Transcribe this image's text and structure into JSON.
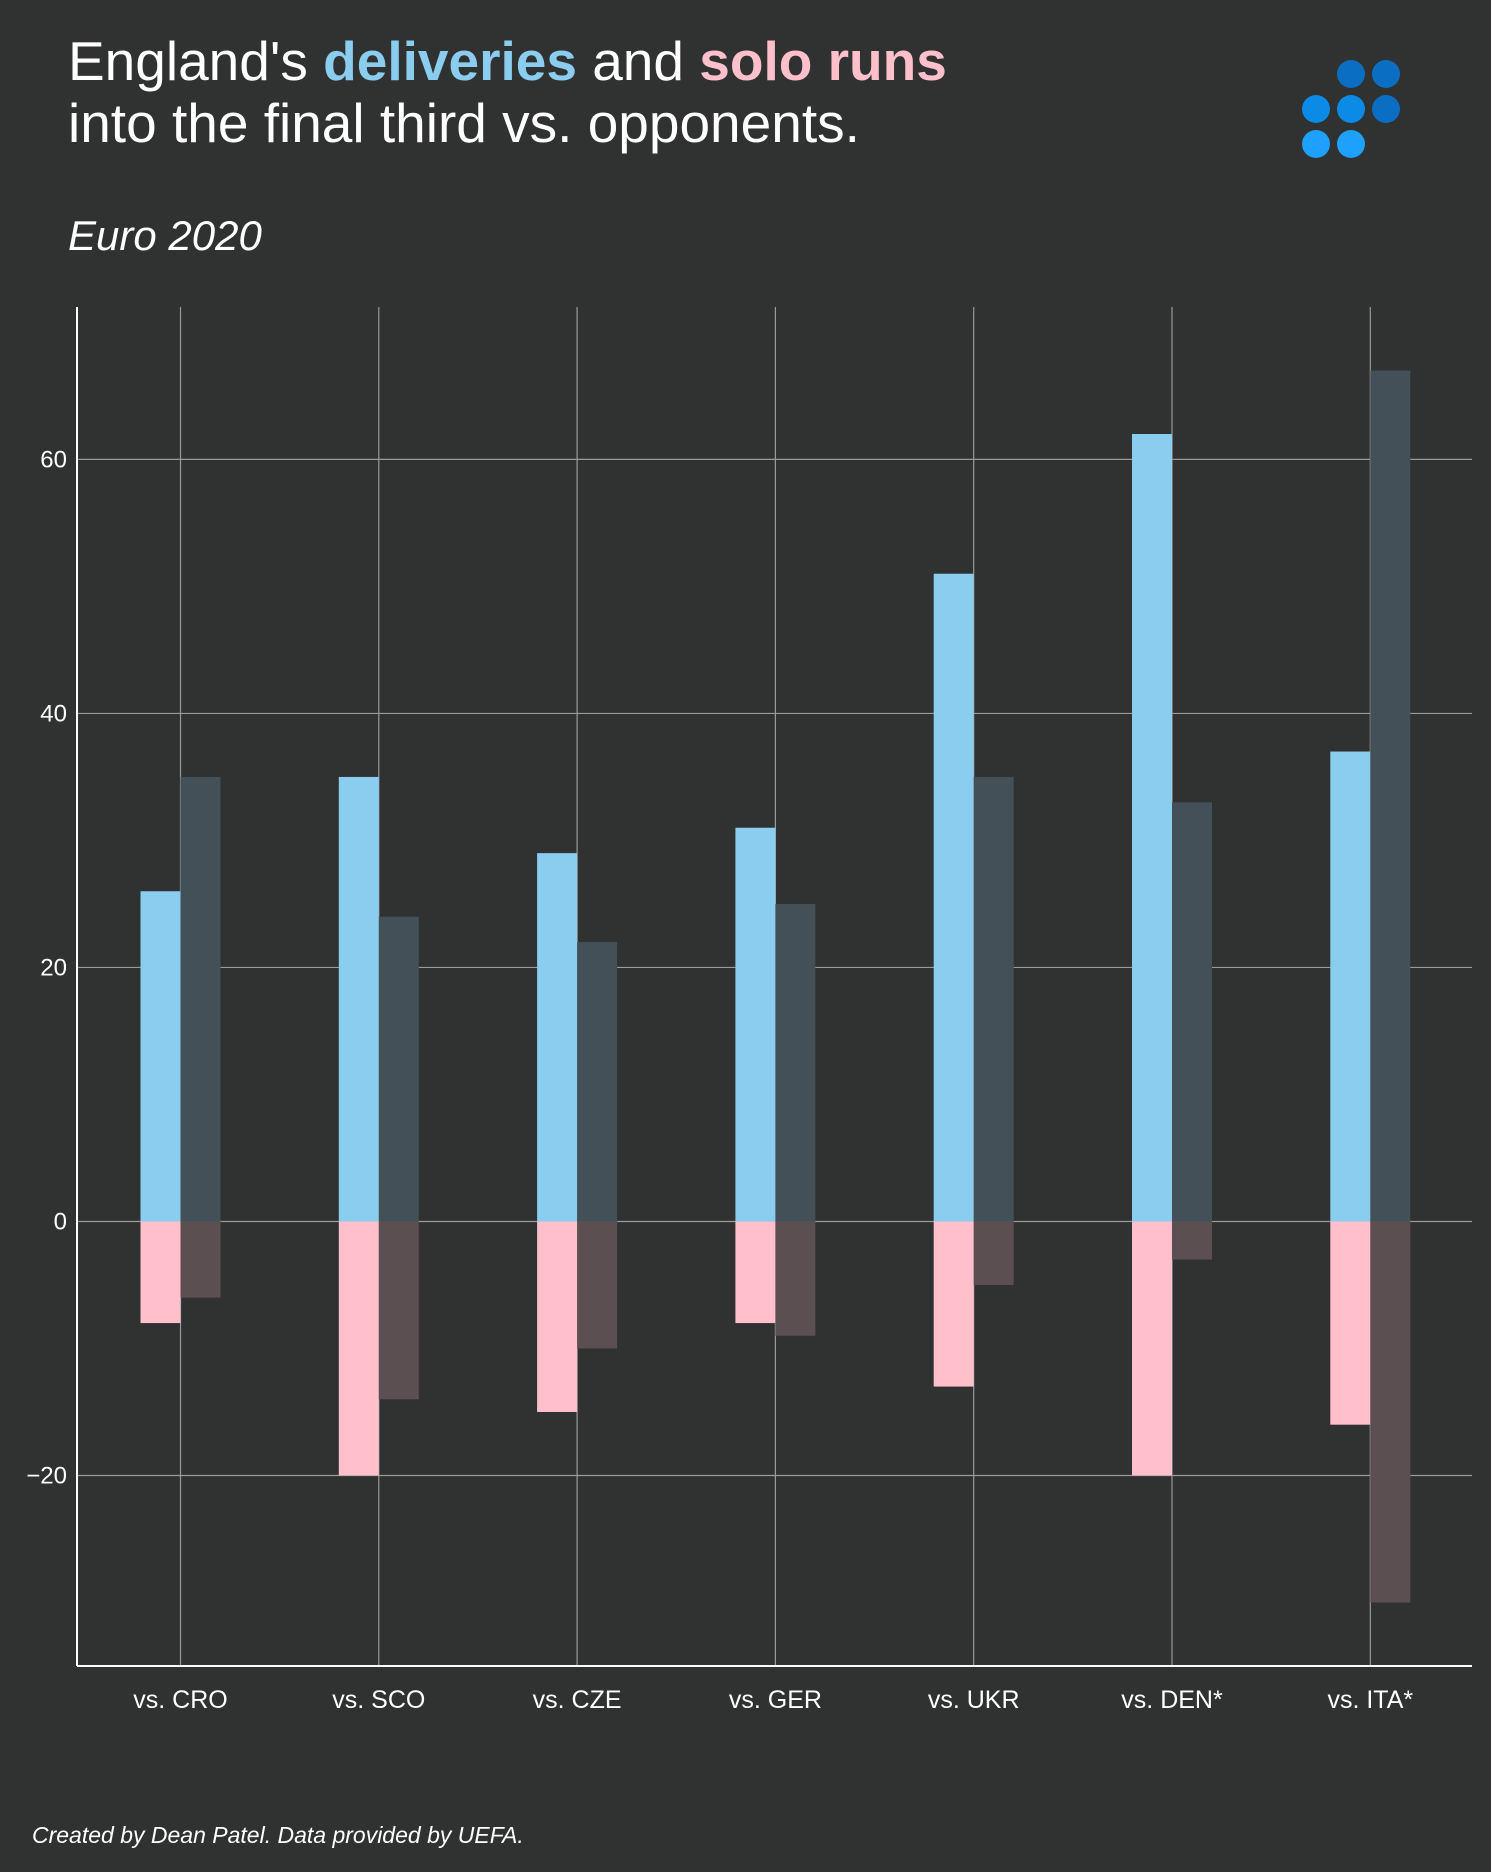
{
  "header": {
    "title_part1": "England's ",
    "title_highlight_deliveries": "deliveries",
    "title_part2": " and ",
    "title_highlight_solo": "solo runs",
    "title_line2": "into the final third vs. opponents.",
    "subtitle": "Euro 2020"
  },
  "footer": {
    "credit": "Created by Dean Patel. Data provided by UEFA."
  },
  "logo": {
    "icon": "dot-grid-logo-icon"
  },
  "colors": {
    "background": "#303131",
    "deliveries": "#8acdee",
    "solo_runs": "#ffc0cb",
    "opponent_deliveries": "#435057",
    "opponent_solo_runs": "#5b4f52",
    "grid": "#9a9a9a",
    "logo_dark": "#0a6fc2",
    "logo_mid": "#0b8ae6",
    "logo_light": "#1ea0ff"
  },
  "chart_data": {
    "type": "bar",
    "title": "",
    "xlabel": "",
    "ylabel": "",
    "categories": [
      "vs. CRO",
      "vs. SCO",
      "vs. CZE",
      "vs. GER",
      "vs. UKR",
      "vs. DEN*",
      "vs. ITA*"
    ],
    "ylim": [
      -35,
      72
    ],
    "yticks": [
      -20,
      0,
      20,
      40,
      60
    ],
    "grid": true,
    "legend": "none",
    "series": [
      {
        "name": "deliveries",
        "group": "England",
        "values": [
          26,
          35,
          29,
          31,
          51,
          62,
          37
        ]
      },
      {
        "name": "solo runs",
        "group": "England",
        "values": [
          -8,
          -20,
          -15,
          -8,
          -13,
          -20,
          -16
        ]
      },
      {
        "group": "Opponents",
        "values": [
          35,
          24,
          22,
          25,
          35,
          33,
          67
        ]
      },
      {
        "group": "Opponents",
        "values": [
          -6,
          -14,
          -10,
          -9,
          -5,
          -3,
          -30
        ]
      }
    ]
  }
}
